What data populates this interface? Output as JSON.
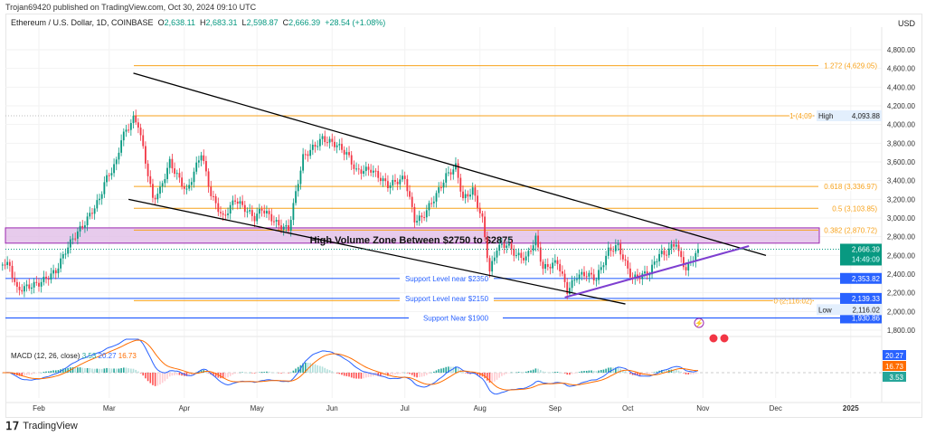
{
  "publisher": "Trojan69420 published on TradingView.com, Oct 30, 2024 09:10 UTC",
  "legend": {
    "symbol": "Ethereum / U.S. Dollar, 1D, COINBASE",
    "o_label": "O",
    "o": "2,638.11",
    "h_label": "H",
    "h": "2,683.31",
    "l_label": "L",
    "l": "2,598.87",
    "c_label": "C",
    "c": "2,666.39",
    "change": "+28.54 (+1.08%)"
  },
  "currency": "USD",
  "brand": "TradingView",
  "colors": {
    "up": "#089981",
    "down": "#f23645",
    "fib": "#f7a21b",
    "support": "#2962ff",
    "trend": "#000000",
    "wedge": "#7e3fd0",
    "zone": "#e1bee7",
    "macd": "#2962ff",
    "signal": "#ff6d00"
  },
  "chart_data": {
    "type": "candlestick",
    "symbol": "ETH/USD",
    "price_axis": {
      "ticks": [
        1800,
        2000,
        2200,
        2400,
        2600,
        2800,
        3000,
        3200,
        3400,
        3600,
        3800,
        4000,
        4200,
        4400,
        4600,
        4800
      ],
      "range": [
        1700,
        4900
      ]
    },
    "time_axis": {
      "ticks": [
        "Feb",
        "Mar",
        "Apr",
        "May",
        "Jun",
        "Jul",
        "Aug",
        "Sep",
        "Oct",
        "Nov",
        "Dec",
        "2025"
      ]
    },
    "approx_closes": [
      [
        "2024-01-17",
        2530
      ],
      [
        "2024-01-20",
        2480
      ],
      [
        "2024-01-23",
        2230
      ],
      [
        "2024-02-01",
        2300
      ],
      [
        "2024-02-08",
        2430
      ],
      [
        "2024-02-12",
        2650
      ],
      [
        "2024-02-15",
        2780
      ],
      [
        "2024-02-20",
        2950
      ],
      [
        "2024-02-26",
        3200
      ],
      [
        "2024-02-28",
        3380
      ],
      [
        "2024-03-04",
        3600
      ],
      [
        "2024-03-06",
        3850
      ],
      [
        "2024-03-11",
        4060
      ],
      [
        "2024-03-13",
        4000
      ],
      [
        "2024-03-15",
        3740
      ],
      [
        "2024-03-19",
        3200
      ],
      [
        "2024-03-22",
        3300
      ],
      [
        "2024-03-26",
        3600
      ],
      [
        "2024-03-28",
        3500
      ],
      [
        "2024-04-02",
        3280
      ],
      [
        "2024-04-08",
        3700
      ],
      [
        "2024-04-12",
        3250
      ],
      [
        "2024-04-17",
        3000
      ],
      [
        "2024-04-22",
        3200
      ],
      [
        "2024-04-24",
        3150
      ],
      [
        "2024-04-30",
        3000
      ],
      [
        "2024-05-03",
        3100
      ],
      [
        "2024-05-10",
        2920
      ],
      [
        "2024-05-14",
        2880
      ],
      [
        "2024-05-20",
        3650
      ],
      [
        "2024-05-24",
        3750
      ],
      [
        "2024-05-28",
        3850
      ],
      [
        "2024-06-03",
        3780
      ],
      [
        "2024-06-07",
        3690
      ],
      [
        "2024-06-11",
        3500
      ],
      [
        "2024-06-17",
        3520
      ],
      [
        "2024-06-24",
        3350
      ],
      [
        "2024-07-01",
        3430
      ],
      [
        "2024-07-05",
        2980
      ],
      [
        "2024-07-08",
        3000
      ],
      [
        "2024-07-14",
        3250
      ],
      [
        "2024-07-18",
        3450
      ],
      [
        "2024-07-22",
        3550
      ],
      [
        "2024-07-25",
        3200
      ],
      [
        "2024-07-29",
        3300
      ],
      [
        "2024-08-02",
        2980
      ],
      [
        "2024-08-05",
        2420
      ],
      [
        "2024-08-08",
        2680
      ],
      [
        "2024-08-12",
        2720
      ],
      [
        "2024-08-16",
        2600
      ],
      [
        "2024-08-20",
        2570
      ],
      [
        "2024-08-24",
        2780
      ],
      [
        "2024-08-27",
        2460
      ],
      [
        "2024-09-02",
        2530
      ],
      [
        "2024-09-06",
        2220
      ],
      [
        "2024-09-10",
        2380
      ],
      [
        "2024-09-14",
        2400
      ],
      [
        "2024-09-18",
        2350
      ],
      [
        "2024-09-23",
        2650
      ],
      [
        "2024-09-27",
        2700
      ],
      [
        "2024-10-01",
        2450
      ],
      [
        "2024-10-03",
        2350
      ],
      [
        "2024-10-10",
        2420
      ],
      [
        "2024-10-14",
        2620
      ],
      [
        "2024-10-16",
        2610
      ],
      [
        "2024-10-21",
        2740
      ],
      [
        "2024-10-22",
        2620
      ],
      [
        "2024-10-25",
        2450
      ],
      [
        "2024-10-28",
        2570
      ],
      [
        "2024-10-30",
        2666.39
      ]
    ],
    "fib_levels": [
      {
        "label": "1.272 (4,629.05)",
        "price": 4629.05
      },
      {
        "label": "1 (4,09",
        "price": 4093.88
      },
      {
        "label": "0.618 (3,336.97)",
        "price": 3336.97
      },
      {
        "label": "0.5 (3,103.85)",
        "price": 3103.85
      },
      {
        "label": "0.382 (2,870.72)",
        "price": 2870.72
      },
      {
        "label": "0 (2,116.02)",
        "price": 2116.02
      }
    ],
    "zone": {
      "label": "High Volume Zone Between $2750 to $2875",
      "low": 2750,
      "high": 2875
    },
    "supports": [
      {
        "label": "Support Level near $2350",
        "price": 2353.82,
        "tag": "2,353.82"
      },
      {
        "label": "Support Level near $2150",
        "price": 2139.33,
        "tag": "2,139.33"
      },
      {
        "label": "Support Near $1900",
        "price": 1930.86,
        "tag": "1,930.86"
      }
    ],
    "channel_upper": [
      [
        "2024-03-11",
        4550
      ],
      [
        "2024-11-27",
        2600
      ]
    ],
    "channel_lower": [
      [
        "2024-03-09",
        3200
      ],
      [
        "2024-09-30",
        2080
      ]
    ],
    "wedge_support": [
      [
        "2024-09-05",
        2150
      ],
      [
        "2024-11-20",
        2700
      ]
    ],
    "price_tags": {
      "last": "2,666.39",
      "countdown": "14:49:09",
      "high_label": "High",
      "high": "4,093.88",
      "low_label": "Low",
      "low": "2,116.02"
    },
    "macd": {
      "label": "MACD (12, 26, close)",
      "hist": "3.53",
      "macd": "20.27",
      "signal": "16.73"
    }
  }
}
